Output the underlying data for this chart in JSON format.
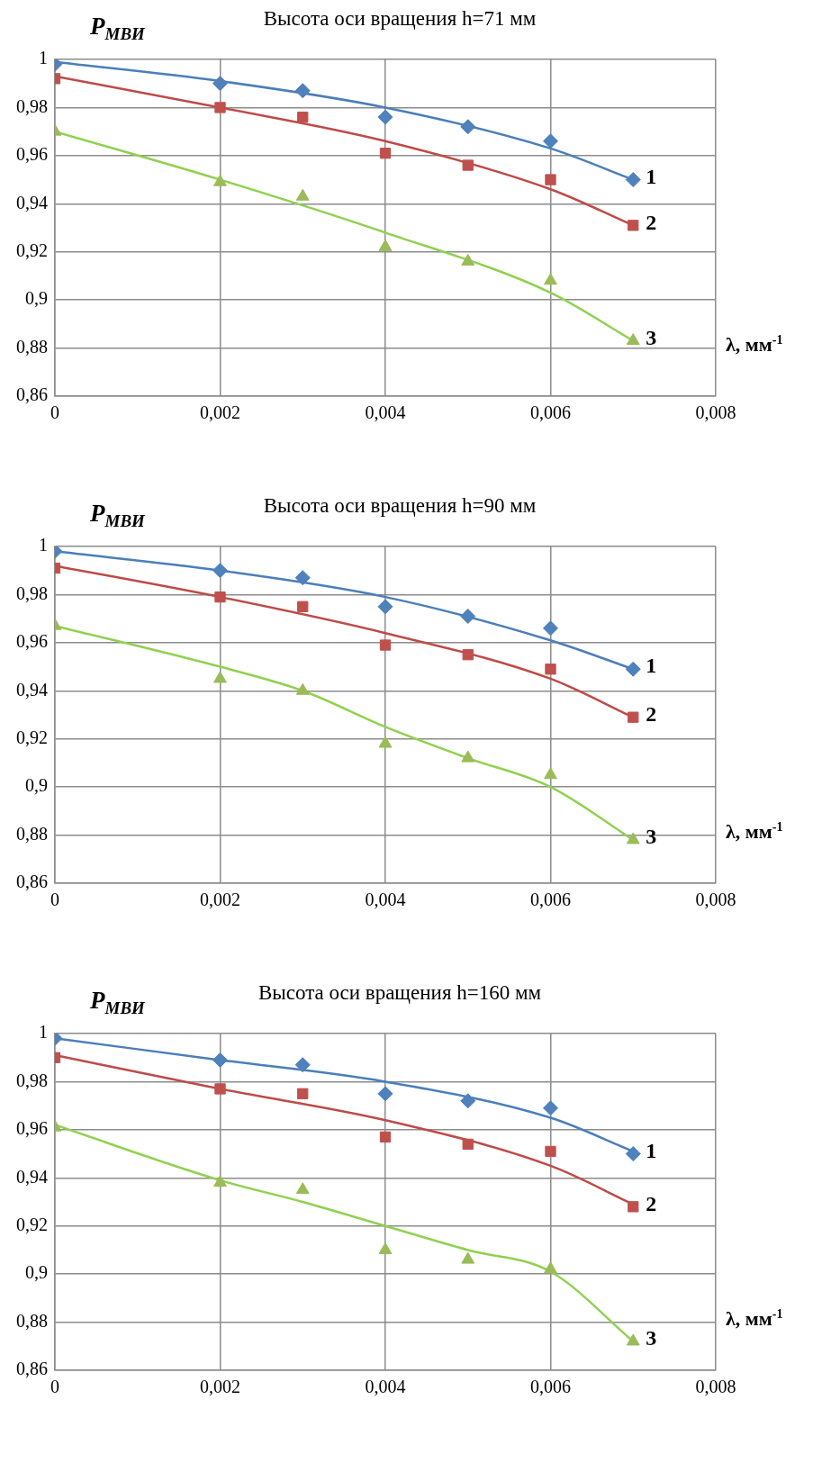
{
  "chart_data": [
    {
      "type": "scatter",
      "title": "Высота оси вращения h=71 мм",
      "xlabel": "λ, мм$^{-1}$",
      "ylabel": "P$_{МВИ}$",
      "xlim": [
        0,
        0.008
      ],
      "ylim": [
        0.86,
        1
      ],
      "xticks": [
        {
          "value": 0,
          "label": "0"
        },
        {
          "value": 0.002,
          "label": "0,002"
        },
        {
          "value": 0.004,
          "label": "0,004"
        },
        {
          "value": 0.006,
          "label": "0,006"
        },
        {
          "value": 0.008,
          "label": "0,008"
        }
      ],
      "yticks": [
        {
          "value": 0.86,
          "label": "0,86"
        },
        {
          "value": 0.88,
          "label": "0,88"
        },
        {
          "value": 0.9,
          "label": "0,9"
        },
        {
          "value": 0.92,
          "label": "0,92"
        },
        {
          "value": 0.94,
          "label": "0,94"
        },
        {
          "value": 0.96,
          "label": "0,96"
        },
        {
          "value": 0.98,
          "label": "0,98"
        },
        {
          "value": 1,
          "label": "1"
        }
      ],
      "grid": true,
      "legend": false,
      "series": [
        {
          "name": "1",
          "type": "scatter",
          "marker": "diamond",
          "color": "#4f81bd",
          "x": [
            0,
            0.002,
            0.003,
            0.004,
            0.005,
            0.006,
            0.007
          ],
          "values": [
            0.998,
            0.99,
            0.987,
            0.976,
            0.972,
            0.966,
            0.95
          ]
        },
        {
          "name": "2",
          "type": "scatter",
          "marker": "square",
          "color": "#c0504d",
          "x": [
            0,
            0.002,
            0.003,
            0.004,
            0.005,
            0.006,
            0.007
          ],
          "values": [
            0.992,
            0.98,
            0.976,
            0.961,
            0.956,
            0.95,
            0.931
          ]
        },
        {
          "name": "3",
          "type": "scatter",
          "marker": "triangle",
          "color": "#9bbb59",
          "x": [
            0,
            0.002,
            0.003,
            0.004,
            0.005,
            0.006,
            0.007
          ],
          "values": [
            0.97,
            0.949,
            0.943,
            0.922,
            0.916,
            0.908,
            0.883
          ]
        },
        {
          "type": "line",
          "marker": "none",
          "color": "#4a7ebb",
          "x": [
            0,
            0.002,
            0.004,
            0.006,
            0.007
          ],
          "values": [
            0.999,
            0.991,
            0.98,
            0.963,
            0.95
          ]
        },
        {
          "type": "line",
          "marker": "none",
          "color": "#be4b48",
          "x": [
            0,
            0.002,
            0.004,
            0.006,
            0.007
          ],
          "values": [
            0.993,
            0.98,
            0.966,
            0.946,
            0.931
          ]
        },
        {
          "type": "line",
          "marker": "none",
          "color": "#8fd14f",
          "x": [
            0,
            0.002,
            0.004,
            0.006,
            0.007
          ],
          "values": [
            0.97,
            0.95,
            0.928,
            0.903,
            0.883
          ]
        }
      ]
    },
    {
      "type": "scatter",
      "title": "Высота оси вращения h=90 мм",
      "xlabel": "λ, мм$^{-1}$",
      "ylabel": "P$_{МВИ}$",
      "xlim": [
        0,
        0.008
      ],
      "ylim": [
        0.86,
        1
      ],
      "xticks": [
        {
          "value": 0,
          "label": "0"
        },
        {
          "value": 0.002,
          "label": "0,002"
        },
        {
          "value": 0.004,
          "label": "0,004"
        },
        {
          "value": 0.006,
          "label": "0,006"
        },
        {
          "value": 0.008,
          "label": "0,008"
        }
      ],
      "yticks": [
        {
          "value": 0.86,
          "label": "0,86"
        },
        {
          "value": 0.88,
          "label": "0,88"
        },
        {
          "value": 0.9,
          "label": "0,9"
        },
        {
          "value": 0.92,
          "label": "0,92"
        },
        {
          "value": 0.94,
          "label": "0,94"
        },
        {
          "value": 0.96,
          "label": "0,96"
        },
        {
          "value": 0.98,
          "label": "0,98"
        },
        {
          "value": 1,
          "label": "1"
        }
      ],
      "grid": true,
      "legend": false,
      "series": [
        {
          "name": "1",
          "type": "scatter",
          "marker": "diamond",
          "color": "#4f81bd",
          "x": [
            0,
            0.002,
            0.003,
            0.004,
            0.005,
            0.006,
            0.007
          ],
          "values": [
            0.998,
            0.99,
            0.987,
            0.975,
            0.971,
            0.966,
            0.949
          ]
        },
        {
          "name": "2",
          "type": "scatter",
          "marker": "square",
          "color": "#c0504d",
          "x": [
            0,
            0.002,
            0.003,
            0.004,
            0.005,
            0.006,
            0.007
          ],
          "values": [
            0.991,
            0.979,
            0.975,
            0.959,
            0.955,
            0.949,
            0.929
          ]
        },
        {
          "name": "3",
          "type": "scatter",
          "marker": "triangle",
          "color": "#9bbb59",
          "x": [
            0,
            0.002,
            0.003,
            0.004,
            0.005,
            0.006,
            0.007
          ],
          "values": [
            0.967,
            0.945,
            0.94,
            0.918,
            0.912,
            0.905,
            0.878
          ]
        },
        {
          "type": "line",
          "marker": "none",
          "color": "#4a7ebb",
          "x": [
            0,
            0.002,
            0.004,
            0.006,
            0.007
          ],
          "values": [
            0.998,
            0.99,
            0.979,
            0.961,
            0.949
          ]
        },
        {
          "type": "line",
          "marker": "none",
          "color": "#be4b48",
          "x": [
            0,
            0.002,
            0.004,
            0.006,
            0.007
          ],
          "values": [
            0.992,
            0.979,
            0.964,
            0.945,
            0.929
          ]
        },
        {
          "type": "line",
          "marker": "none",
          "color": "#8fd14f",
          "x": [
            0,
            0.002,
            0.003,
            0.004,
            0.005,
            0.006,
            0.007
          ],
          "values": [
            0.967,
            0.95,
            0.94,
            0.925,
            0.912,
            0.9,
            0.878
          ]
        }
      ]
    },
    {
      "type": "scatter",
      "title": "Высота оси вращения h=160 мм",
      "xlabel": "λ, мм$^{-1}$",
      "ylabel": "P$_{МВИ}$",
      "xlim": [
        0,
        0.008
      ],
      "ylim": [
        0.86,
        1
      ],
      "xticks": [
        {
          "value": 0,
          "label": "0"
        },
        {
          "value": 0.002,
          "label": "0,002"
        },
        {
          "value": 0.004,
          "label": "0,004"
        },
        {
          "value": 0.006,
          "label": "0,006"
        },
        {
          "value": 0.008,
          "label": "0,008"
        }
      ],
      "yticks": [
        {
          "value": 0.86,
          "label": "0,86"
        },
        {
          "value": 0.88,
          "label": "0,88"
        },
        {
          "value": 0.9,
          "label": "0,9"
        },
        {
          "value": 0.92,
          "label": "0,92"
        },
        {
          "value": 0.94,
          "label": "0,94"
        },
        {
          "value": 0.96,
          "label": "0,96"
        },
        {
          "value": 0.98,
          "label": "0,98"
        },
        {
          "value": 1,
          "label": "1"
        }
      ],
      "grid": true,
      "legend": false,
      "series": [
        {
          "name": "1",
          "type": "scatter",
          "marker": "diamond",
          "color": "#4f81bd",
          "x": [
            0,
            0.002,
            0.003,
            0.004,
            0.005,
            0.006,
            0.007
          ],
          "values": [
            0.998,
            0.989,
            0.987,
            0.975,
            0.972,
            0.969,
            0.95
          ]
        },
        {
          "name": "2",
          "type": "scatter",
          "marker": "square",
          "color": "#c0504d",
          "x": [
            0,
            0.002,
            0.003,
            0.004,
            0.005,
            0.006,
            0.007
          ],
          "values": [
            0.99,
            0.977,
            0.975,
            0.957,
            0.954,
            0.951,
            0.928
          ]
        },
        {
          "name": "3",
          "type": "scatter",
          "marker": "triangle",
          "color": "#9bbb59",
          "x": [
            0,
            0.002,
            0.003,
            0.004,
            0.005,
            0.006,
            0.007
          ],
          "values": [
            0.961,
            0.938,
            0.935,
            0.91,
            0.906,
            0.902,
            0.872
          ]
        },
        {
          "type": "line",
          "marker": "none",
          "color": "#4a7ebb",
          "x": [
            0,
            0.002,
            0.004,
            0.006,
            0.007
          ],
          "values": [
            0.998,
            0.989,
            0.98,
            0.965,
            0.951
          ]
        },
        {
          "type": "line",
          "marker": "none",
          "color": "#be4b48",
          "x": [
            0,
            0.002,
            0.004,
            0.006,
            0.007
          ],
          "values": [
            0.991,
            0.977,
            0.964,
            0.945,
            0.929
          ]
        },
        {
          "type": "line",
          "marker": "none",
          "color": "#8fd14f",
          "x": [
            0,
            0.002,
            0.003,
            0.004,
            0.005,
            0.006,
            0.007
          ],
          "values": [
            0.962,
            0.939,
            0.93,
            0.92,
            0.91,
            0.901,
            0.872
          ]
        }
      ]
    }
  ]
}
